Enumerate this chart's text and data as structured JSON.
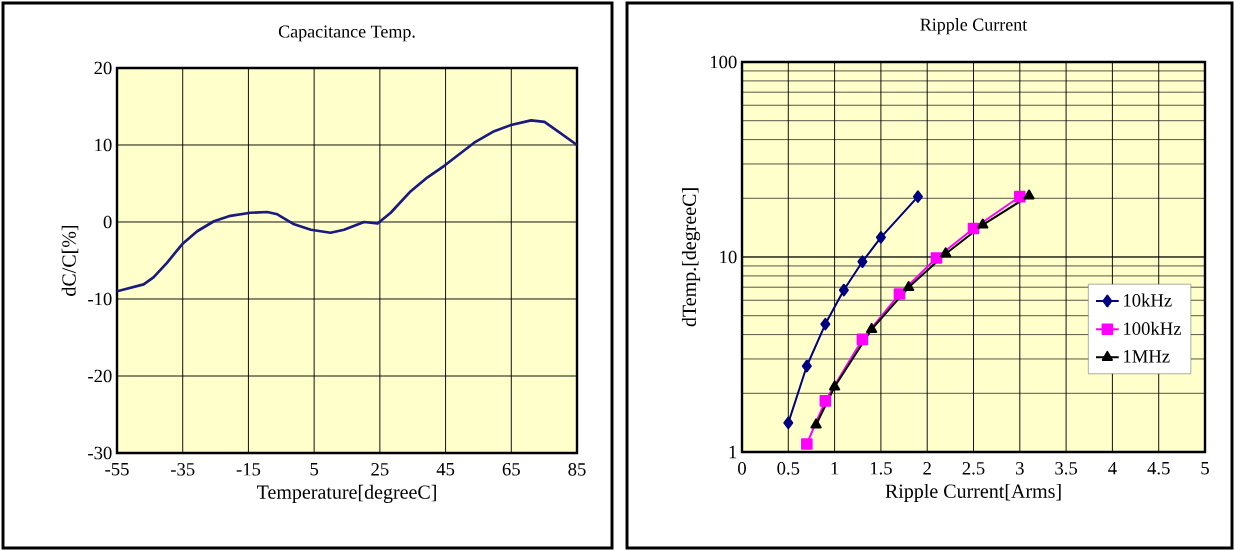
{
  "chart_data": [
    {
      "type": "line",
      "title": "Capacitance Temp.",
      "xlabel": "Temperature[degreeC]",
      "ylabel": "dC/C[%]",
      "x": [
        -55,
        -46.9,
        -43.9,
        -39.8,
        -35.2,
        -30.6,
        -25.5,
        -20.5,
        -14.4,
        -9.3,
        -6.2,
        -1.1,
        4.0,
        10.0,
        14.1,
        20.2,
        24.3,
        28.3,
        34.4,
        39.5,
        44.6,
        53.7,
        59.8,
        64.9,
        71.0,
        75.1,
        79.1,
        85
      ],
      "series": [
        {
          "color": "#1a1a80",
          "values": [
            -9.0,
            -8.1,
            -7.2,
            -5.3,
            -2.9,
            -1.2,
            0.1,
            0.8,
            1.2,
            1.3,
            1.0,
            -0.3,
            -1.0,
            -1.4,
            -1.0,
            0.0,
            -0.2,
            1.2,
            4.0,
            5.8,
            7.3,
            10.3,
            11.8,
            12.6,
            13.2,
            13.0,
            11.8,
            10.0
          ]
        }
      ],
      "xlim": [
        -55,
        85
      ],
      "ylim": [
        -30,
        20
      ],
      "xticks": [
        -55,
        -35,
        -15,
        5,
        25,
        45,
        65,
        85
      ],
      "yticks": [
        -30,
        -20,
        -10,
        0,
        10,
        20
      ],
      "grid": true,
      "marker": "none",
      "line_style": "solid"
    },
    {
      "type": "line",
      "title": "Ripple Current",
      "xlabel": "Ripple Current[Arms]",
      "ylabel": "dTemp.[degreeC]",
      "series": [
        {
          "name": "10kHz",
          "color": "#000080",
          "marker": "diamond",
          "x": [
            0.5,
            0.7,
            0.9,
            1.1,
            1.3,
            1.5,
            1.9
          ],
          "values": [
            1.41,
            2.76,
            4.53,
            6.77,
            9.46,
            12.6,
            20.4
          ]
        },
        {
          "name": "100kHz",
          "color": "#ff00ff",
          "marker": "square",
          "x": [
            0.7,
            0.9,
            1.3,
            1.7,
            2.1,
            2.5,
            3.0
          ],
          "values": [
            1.1,
            1.83,
            3.78,
            6.46,
            9.88,
            14.0,
            20.4
          ]
        },
        {
          "name": "1MHz",
          "color": "#000000",
          "marker": "triangle",
          "x": [
            0.8,
            1.0,
            1.4,
            1.8,
            2.2,
            2.6,
            3.1
          ],
          "values": [
            1.38,
            2.16,
            4.26,
            6.99,
            10.4,
            14.6,
            20.6
          ]
        }
      ],
      "xlim": [
        0,
        5
      ],
      "ylim": [
        1,
        100
      ],
      "xticks": [
        0,
        0.5,
        1,
        1.5,
        2,
        2.5,
        3,
        3.5,
        4,
        4.5,
        5
      ],
      "yticks": [
        1,
        10,
        100
      ],
      "log": "y",
      "grid": true,
      "legend": "bottom right",
      "line_style": "solid"
    }
  ]
}
